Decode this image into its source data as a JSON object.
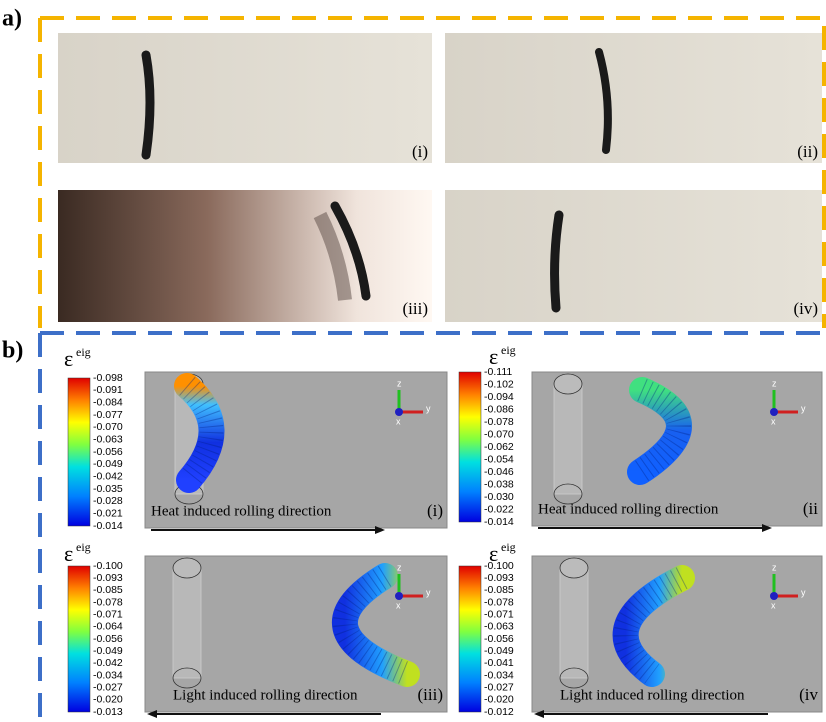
{
  "panels": {
    "a": {
      "label": "a)",
      "photos": [
        {
          "label": "(i)"
        },
        {
          "label": "(ii)"
        },
        {
          "label": "(iii)"
        },
        {
          "label": "(iv)"
        }
      ]
    },
    "b": {
      "label": "b)",
      "simulations": [
        {
          "symbol": "ε",
          "superscript": "eig",
          "label": "(i)",
          "caption": "Heat induced rolling direction",
          "axes": [
            "z",
            "y",
            "x"
          ],
          "ticks": [
            "-0.098",
            "-0.091",
            "-0.084",
            "-0.077",
            "-0.070",
            "-0.063",
            "-0.056",
            "-0.049",
            "-0.042",
            "-0.035",
            "-0.028",
            "-0.021",
            "-0.014"
          ]
        },
        {
          "symbol": "ε",
          "superscript": "eig",
          "label": "(ii",
          "caption": "Heat induced rolling direction",
          "axes": [
            "z",
            "y",
            "x"
          ],
          "ticks": [
            "-0.111",
            "-0.102",
            "-0.094",
            "-0.086",
            "-0.078",
            "-0.070",
            "-0.062",
            "-0.054",
            "-0.046",
            "-0.038",
            "-0.030",
            "-0.022",
            "-0.014"
          ]
        },
        {
          "symbol": "ε",
          "superscript": "eig",
          "label": "(iii)",
          "caption": "Light induced rolling direction",
          "axes": [
            "z",
            "y",
            "x"
          ],
          "ticks": [
            "-0.100",
            "-0.093",
            "-0.085",
            "-0.078",
            "-0.071",
            "-0.064",
            "-0.056",
            "-0.049",
            "-0.042",
            "-0.034",
            "-0.027",
            "-0.020",
            "-0.013"
          ]
        },
        {
          "symbol": "ε",
          "superscript": "eig",
          "label": "(iv",
          "caption": "Light induced rolling direction",
          "axes": [
            "z",
            "y",
            "x"
          ],
          "ticks": [
            "-0.100",
            "-0.093",
            "-0.085",
            "-0.078",
            "-0.071",
            "-0.063",
            "-0.056",
            "-0.049",
            "-0.041",
            "-0.034",
            "-0.027",
            "-0.020",
            "-0.012"
          ]
        }
      ]
    }
  }
}
